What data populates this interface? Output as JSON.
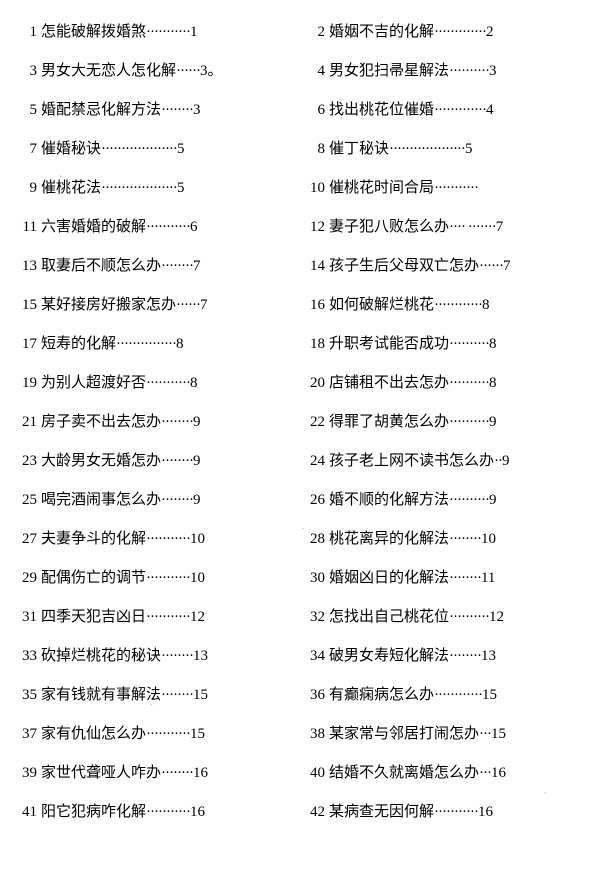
{
  "style": {
    "background_color": "#ffffff",
    "text_color": "#000000",
    "font_family": "SimSun",
    "font_size_pt": 11,
    "line_height": 1.6,
    "columns": 2,
    "dot_leader_char": "·"
  },
  "toc": {
    "entries": [
      {
        "num": "1",
        "title": "怎能破解拨婚煞",
        "dots": "···········",
        "page": "1"
      },
      {
        "num": "2",
        "title": "婚姻不吉的化解",
        "dots": "·············",
        "page": "2"
      },
      {
        "num": "3",
        "title": "男女大无恋人怎化解",
        "dots": "······",
        "page": "3。"
      },
      {
        "num": "4",
        "title": "男女犯扫帚星解法",
        "dots": "··········",
        "page": "3"
      },
      {
        "num": "5",
        "title": "婚配禁忌化解方法",
        "dots": "········",
        "page": "3"
      },
      {
        "num": "6",
        "title": "找出桃花位催婚",
        "dots": "·············",
        "page": "4"
      },
      {
        "num": "7",
        "title": "催婚秘诀",
        "dots": "···················",
        "page": "5"
      },
      {
        "num": "8",
        "title": "催丁秘诀",
        "dots": "···················",
        "page": "5"
      },
      {
        "num": "9",
        "title": "催桃花法",
        "dots": "···················",
        "page": "5"
      },
      {
        "num": "10",
        "title": "催桃花时间合局",
        "dots": "···········",
        "page": ""
      },
      {
        "num": "11",
        "title": "六害婚婚的破解",
        "dots": "···········",
        "page": "6"
      },
      {
        "num": "12",
        "title": "妻子犯八败怎么办",
        "dots": "···· ·······",
        "page": "7"
      },
      {
        "num": "13",
        "title": "取妻后不顺怎么办",
        "dots": "········",
        "page": "7"
      },
      {
        "num": "14",
        "title": "孩子生后父母双亡怎办",
        "dots": "······",
        "page": "7"
      },
      {
        "num": "15",
        "title": "某好接房好搬家怎办",
        "dots": "······",
        "page": "7"
      },
      {
        "num": "16",
        "title": "如何破解烂桃花",
        "dots": "············",
        "page": "8"
      },
      {
        "num": "17",
        "title": "短寿的化解",
        "dots": "···············",
        "page": "8"
      },
      {
        "num": "18",
        "title": "升职考试能否成功",
        "dots": "··········",
        "page": "8"
      },
      {
        "num": "19",
        "title": "为别人超渡好否",
        "dots": "···········",
        "page": "8"
      },
      {
        "num": "20",
        "title": "店铺租不出去怎办",
        "dots": "··········",
        "page": "8"
      },
      {
        "num": "21",
        "title": "房子卖不出去怎办",
        "dots": "········",
        "page": "9"
      },
      {
        "num": "22",
        "title": "得罪了胡黄怎么办",
        "dots": "··········",
        "page": "9"
      },
      {
        "num": "23",
        "title": "大龄男女无婚怎办",
        "dots": "········",
        "page": "9"
      },
      {
        "num": "24",
        "title": "孩子老上网不读书怎么办",
        "dots": "··",
        "page": "9"
      },
      {
        "num": "25",
        "title": "喝完酒闹事怎么办",
        "dots": "········",
        "page": "9"
      },
      {
        "num": "26",
        "title": "婚不顺的化解方法",
        "dots": "··········",
        "page": "9"
      },
      {
        "num": "27",
        "title": "夫妻争斗的化解",
        "dots": "···········",
        "page": "10"
      },
      {
        "num": "28",
        "title": "桃花离异的化解法",
        "dots": "········",
        "page": "10"
      },
      {
        "num": "29",
        "title": "配偶伤亡的调节",
        "dots": "···········",
        "page": "10"
      },
      {
        "num": "30",
        "title": "婚姻凶日的化解法",
        "dots": "········",
        "page": "11"
      },
      {
        "num": "31",
        "title": "四季天犯吉凶日",
        "dots": "···········",
        "page": "12"
      },
      {
        "num": "32",
        "title": "怎找出自己桃花位",
        "dots": "··········",
        "page": "12"
      },
      {
        "num": "33",
        "title": "砍掉烂桃花的秘诀",
        "dots": "········",
        "page": "13"
      },
      {
        "num": "34",
        "title": "破男女寿短化解法",
        "dots": "········",
        "page": "13"
      },
      {
        "num": "35",
        "title": "家有钱就有事解法",
        "dots": "········",
        "page": "15"
      },
      {
        "num": "36",
        "title": "有癫痫病怎么办",
        "dots": "············",
        "page": "15"
      },
      {
        "num": "37",
        "title": "家有仇仙怎么办",
        "dots": "···········",
        "page": "15"
      },
      {
        "num": "38",
        "title": "某家常与邻居打闹怎办",
        "dots": "···",
        "page": "15"
      },
      {
        "num": "39",
        "title": "家世代聋哑人咋办",
        "dots": "········",
        "page": "16"
      },
      {
        "num": "40",
        "title": "结婚不久就离婚怎么办",
        "dots": "···",
        "page": "16"
      },
      {
        "num": "41",
        "title": "阳它犯病咋化解",
        "dots": "···········",
        "page": "16"
      },
      {
        "num": "42",
        "title": "某病查无因何解",
        "dots": "···········",
        "page": "16"
      }
    ]
  }
}
